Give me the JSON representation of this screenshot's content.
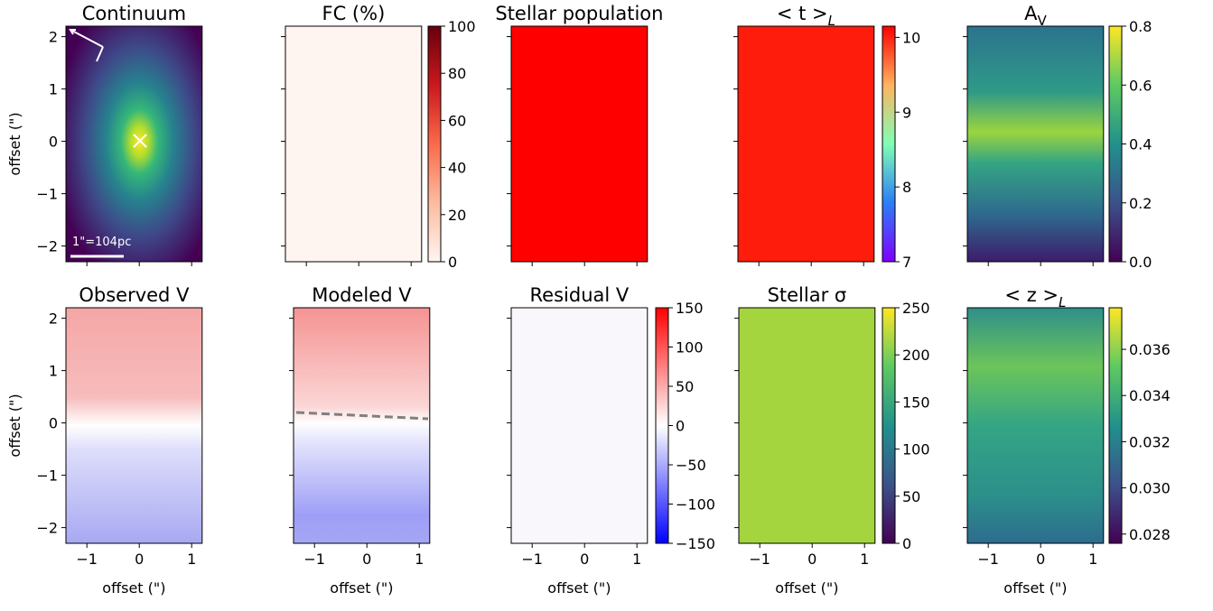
{
  "chart_data": [
    {
      "type": "image",
      "title": "Continuum",
      "annotation": "1\"=104pc",
      "cmap": "viridis",
      "xlim": [
        -1.4,
        1.2
      ],
      "ylim": [
        -2.3,
        2.2
      ],
      "xticks": [
        -1,
        0,
        1
      ],
      "yticks": [
        {
          "value": -2,
          "label": "−2"
        },
        {
          "value": -1,
          "label": "−1"
        },
        0,
        1,
        2
      ],
      "ylabel": "offset (\")"
    },
    {
      "type": "image",
      "title": "FC (%)",
      "cmap": "Reds",
      "xlim": [
        -1.4,
        1.2
      ],
      "ylim": [
        -2.3,
        2.2
      ],
      "xticks": [
        -1,
        0,
        1
      ],
      "yticks": [
        -2,
        -1,
        0,
        1,
        2
      ],
      "colorbar": {
        "cmap": "Reds",
        "clim": [
          0,
          100
        ],
        "ticks": [
          0,
          20,
          40,
          60,
          80,
          100
        ]
      }
    },
    {
      "type": "image",
      "title": "Stellar population",
      "cmap": "red",
      "xlim": [
        -1.4,
        1.2
      ],
      "ylim": [
        -2.3,
        2.2
      ],
      "xticks": [
        -1,
        0,
        1
      ],
      "yticks": [
        -2,
        -1,
        0,
        1,
        2
      ]
    },
    {
      "type": "image",
      "title": "< t >",
      "title_sub": "L",
      "cmap": "rainbow",
      "xlim": [
        -1.4,
        1.2
      ],
      "ylim": [
        -2.3,
        2.2
      ],
      "xticks": [
        -1,
        0,
        1
      ],
      "yticks": [
        -2,
        -1,
        0,
        1,
        2
      ],
      "colorbar": {
        "cmap": "rainbow",
        "clim": [
          7,
          10.15
        ],
        "ticks": [
          7,
          8,
          9,
          10
        ]
      }
    },
    {
      "type": "image",
      "title": "A",
      "title_sub": "V",
      "cmap": "viridis",
      "xlim": [
        -1.4,
        1.2
      ],
      "ylim": [
        -2.3,
        2.2
      ],
      "xticks": [
        -1,
        0,
        1
      ],
      "yticks": [
        -2,
        -1,
        0,
        1,
        2
      ],
      "colorbar": {
        "cmap": "viridis",
        "clim": [
          0,
          0.8
        ],
        "ticks": [
          {
            "value": 0,
            "label": "0.0"
          },
          0.2,
          0.4,
          0.6,
          0.8
        ]
      }
    },
    {
      "type": "image",
      "title": "Observed V",
      "cmap": "bwr",
      "xlim": [
        -1.4,
        1.2
      ],
      "ylim": [
        -2.3,
        2.2
      ],
      "xticks": [
        {
          "value": -1,
          "label": "−1"
        },
        0,
        1
      ],
      "yticks": [
        {
          "value": -2,
          "label": "−2"
        },
        {
          "value": -1,
          "label": "−1"
        },
        0,
        1,
        2
      ],
      "xlabel": "offset (\")",
      "ylabel": "offset (\")"
    },
    {
      "type": "image",
      "title": "Modeled V",
      "cmap": "bwr",
      "xlim": [
        -1.4,
        1.2
      ],
      "ylim": [
        -2.3,
        2.2
      ],
      "xticks": [
        {
          "value": -1,
          "label": "−1"
        },
        0,
        1
      ],
      "yticks": [
        -2,
        -1,
        0,
        1,
        2
      ],
      "xlabel": "offset (\")"
    },
    {
      "type": "image",
      "title": "Residual V",
      "cmap": "bwr",
      "xlim": [
        -1.4,
        1.2
      ],
      "ylim": [
        -2.3,
        2.2
      ],
      "xticks": [
        {
          "value": -1,
          "label": "−1"
        },
        0,
        1
      ],
      "yticks": [
        -2,
        -1,
        0,
        1,
        2
      ],
      "xlabel": "offset (\")",
      "colorbar": {
        "cmap": "bwr",
        "clim": [
          -150,
          150
        ],
        "ticks": [
          {
            "value": -150,
            "label": "−150"
          },
          {
            "value": -100,
            "label": "−100"
          },
          {
            "value": -50,
            "label": "−50"
          },
          0,
          50,
          100,
          150
        ]
      }
    },
    {
      "type": "image",
      "title": "Stellar σ",
      "cmap": "viridis",
      "xlim": [
        -1.4,
        1.2
      ],
      "ylim": [
        -2.3,
        2.2
      ],
      "xticks": [
        {
          "value": -1,
          "label": "−1"
        },
        0,
        1
      ],
      "yticks": [
        -2,
        -1,
        0,
        1,
        2
      ],
      "xlabel": "offset (\")",
      "colorbar": {
        "cmap": "viridis",
        "clim": [
          0,
          250
        ],
        "ticks": [
          0,
          50,
          100,
          150,
          200,
          250
        ]
      }
    },
    {
      "type": "image",
      "title": "< z >",
      "title_sub": "L",
      "cmap": "viridis",
      "xlim": [
        -1.4,
        1.2
      ],
      "ylim": [
        -2.3,
        2.2
      ],
      "xticks": [
        {
          "value": -1,
          "label": "−1"
        },
        0,
        1
      ],
      "yticks": [
        -2,
        -1,
        0,
        1,
        2
      ],
      "xlabel": "offset (\")",
      "colorbar": {
        "cmap": "viridis",
        "clim": [
          0.0276,
          0.0378
        ],
        "ticks": [
          0.028,
          {
            "value": 0.03,
            "label": "0.030"
          },
          0.032,
          0.034,
          0.036
        ]
      }
    }
  ]
}
